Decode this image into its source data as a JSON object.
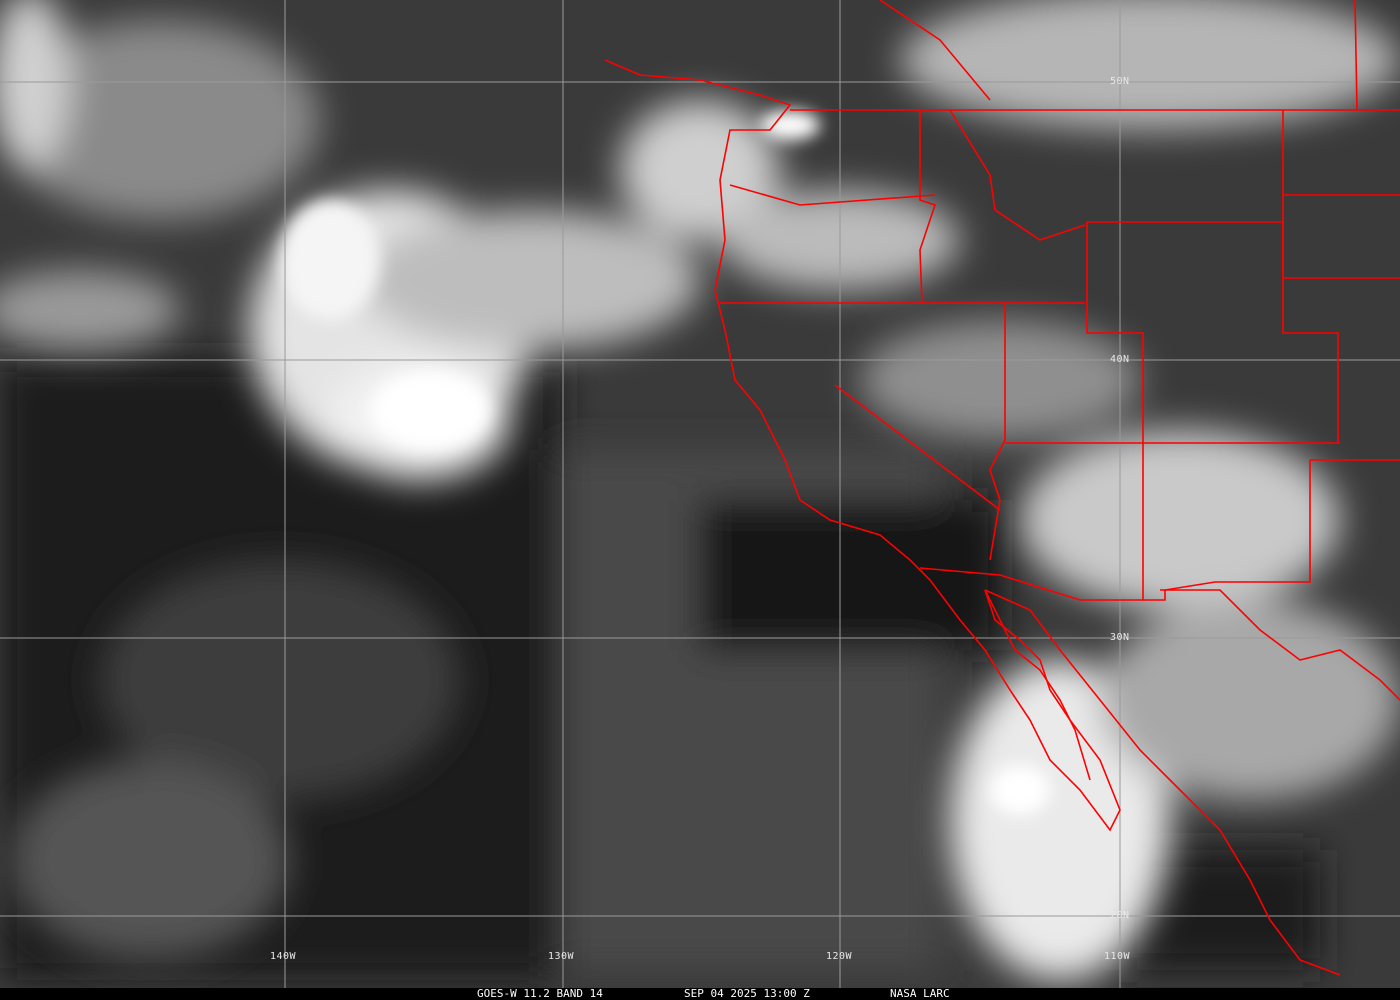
{
  "caption": {
    "satellite": "GOES-W 11.2 BAND 14",
    "datetime": "SEP 04 2025 13:00 Z",
    "source": "NASA LARC"
  },
  "latitude_labels": [
    "50N",
    "40N",
    "30N",
    "20N"
  ],
  "longitude_labels": [
    "140W",
    "130W",
    "120W",
    "110W"
  ],
  "colors": {
    "borders": "#ff0000",
    "grid": "#9a9a9a",
    "background": "#3a3a3a"
  }
}
